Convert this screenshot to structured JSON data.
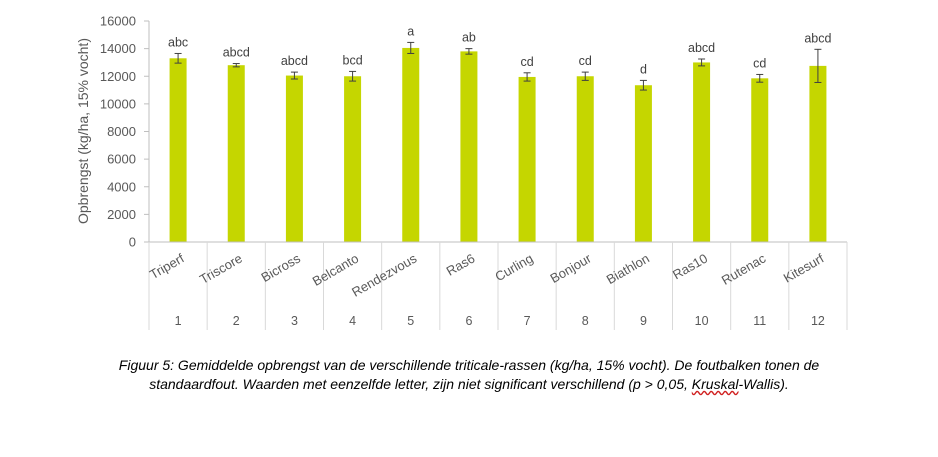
{
  "chart_data": {
    "type": "bar",
    "ylabel": "Opbrengst (kg/ha, 15% vocht)",
    "ylim": [
      0,
      16000
    ],
    "yticks": [
      0,
      2000,
      4000,
      6000,
      8000,
      10000,
      12000,
      14000,
      16000
    ],
    "grid": false,
    "bar_color": "#c5d600",
    "categories": [
      "Triperf",
      "Triscore",
      "Bicross",
      "Belcanto",
      "Rendezvous",
      "Ras6",
      "Curling",
      "Bonjour",
      "Biathlon",
      "Ras10",
      "Rutenac",
      "Kitesurf"
    ],
    "numbers": [
      "1",
      "2",
      "3",
      "4",
      "5",
      "6",
      "7",
      "8",
      "9",
      "10",
      "11",
      "12"
    ],
    "values": [
      13300,
      12800,
      12050,
      12000,
      14050,
      13800,
      11950,
      12000,
      11350,
      13000,
      11850,
      12750
    ],
    "errors": [
      350,
      120,
      250,
      350,
      400,
      200,
      300,
      300,
      350,
      250,
      280,
      1200
    ],
    "letters": [
      "abc",
      "abcd",
      "abcd",
      "bcd",
      "a",
      "ab",
      "cd",
      "cd",
      "d",
      "abcd",
      "cd",
      "abcd"
    ]
  },
  "caption": {
    "line1": "Figuur 5: Gemiddelde opbrengst van de verschillende triticale-rassen (kg/ha, 15% vocht). De foutbalken tonen de",
    "line2_pre": "standaardfout. Waarden met eenzelfde letter, zijn niet significant verschillend (p > 0,05, ",
    "line2_kw": "Kruskal",
    "line2_post": "-Wallis)."
  }
}
